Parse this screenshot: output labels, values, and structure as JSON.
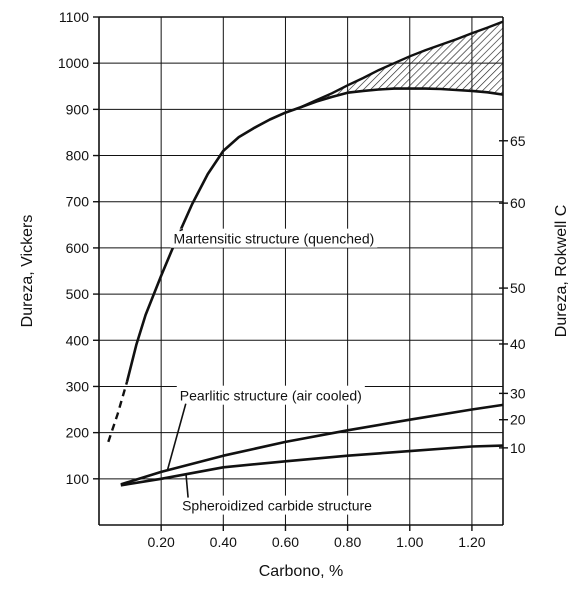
{
  "chart_data": {
    "type": "line",
    "title": "",
    "xlabel": "Carbono, %",
    "ylabel": "Dureza, Vickers",
    "y2label": "Dureza, Rokwell C",
    "xlim": [
      0.0,
      1.3
    ],
    "ylim": [
      0,
      1100
    ],
    "grid": true,
    "legend": "none",
    "x_ticks": [
      0.2,
      0.4,
      0.6,
      0.8,
      1.0,
      1.2
    ],
    "x_tick_labels": [
      "0.20",
      "0.40",
      "0.60",
      "0.80",
      "1.00",
      "1.20"
    ],
    "y_ticks": [
      100,
      200,
      300,
      400,
      500,
      600,
      700,
      800,
      900,
      1000,
      1100
    ],
    "y_tick_labels": [
      "100",
      "200",
      "300",
      "400",
      "500",
      "600",
      "700",
      "800",
      "900",
      "1000",
      "1100"
    ],
    "y2_ticks": [
      {
        "label": "10",
        "vickers": 167
      },
      {
        "label": "20",
        "vickers": 228
      },
      {
        "label": "30",
        "vickers": 285
      },
      {
        "label": "40",
        "vickers": 392
      },
      {
        "label": "50",
        "vickers": 513
      },
      {
        "label": "60",
        "vickers": 697
      },
      {
        "label": "65",
        "vickers": 832
      }
    ],
    "series": [
      {
        "name": "Martensitic structure (quenched)",
        "dashed_x": [
          0.03,
          0.06,
          0.09
        ],
        "dashed_y": [
          180,
          240,
          310
        ],
        "x": [
          0.09,
          0.12,
          0.15,
          0.2,
          0.25,
          0.3,
          0.35,
          0.4,
          0.45,
          0.5,
          0.55,
          0.6,
          0.65,
          0.7,
          0.75,
          0.8,
          0.85,
          0.9,
          0.95,
          1.0,
          1.05,
          1.1,
          1.15,
          1.2,
          1.25,
          1.3
        ],
        "y": [
          310,
          390,
          455,
          540,
          620,
          695,
          760,
          810,
          840,
          860,
          878,
          893,
          905,
          917,
          927,
          936,
          940,
          943,
          945,
          945,
          945,
          944,
          942,
          940,
          937,
          932
        ]
      },
      {
        "name": "Pearlitic structure (air cooled)",
        "x": [
          0.07,
          0.2,
          0.4,
          0.6,
          0.8,
          1.0,
          1.2,
          1.3
        ],
        "y": [
          88,
          115,
          150,
          180,
          205,
          228,
          250,
          260
        ]
      },
      {
        "name": "Spheroidized carbide structure",
        "x": [
          0.07,
          0.2,
          0.4,
          0.6,
          0.8,
          1.0,
          1.2,
          1.3
        ],
        "y": [
          86,
          100,
          125,
          138,
          150,
          160,
          170,
          172
        ]
      }
    ],
    "band": {
      "x": [
        0.65,
        0.7,
        0.75,
        0.8,
        0.85,
        0.9,
        0.95,
        1.0,
        1.05,
        1.1,
        1.15,
        1.2,
        1.25,
        1.3
      ],
      "upper": [
        905,
        920,
        935,
        952,
        968,
        985,
        1000,
        1015,
        1028,
        1040,
        1052,
        1065,
        1077,
        1090
      ],
      "lower": [
        905,
        917,
        927,
        936,
        940,
        943,
        945,
        945,
        945,
        944,
        942,
        940,
        937,
        932
      ]
    },
    "annotations": [
      {
        "text": "Martensitic structure (quenched)",
        "point": [
          0.27,
          640
        ],
        "text_at": [
          0.55,
          620
        ]
      },
      {
        "text": "Pearlitic structure (air cooled)",
        "point": [
          0.22,
          118
        ],
        "text_at": [
          0.54,
          280
        ]
      },
      {
        "text": "Spheroidized carbide structure",
        "point": [
          0.28,
          110
        ],
        "text_at": [
          0.56,
          42
        ]
      }
    ]
  }
}
